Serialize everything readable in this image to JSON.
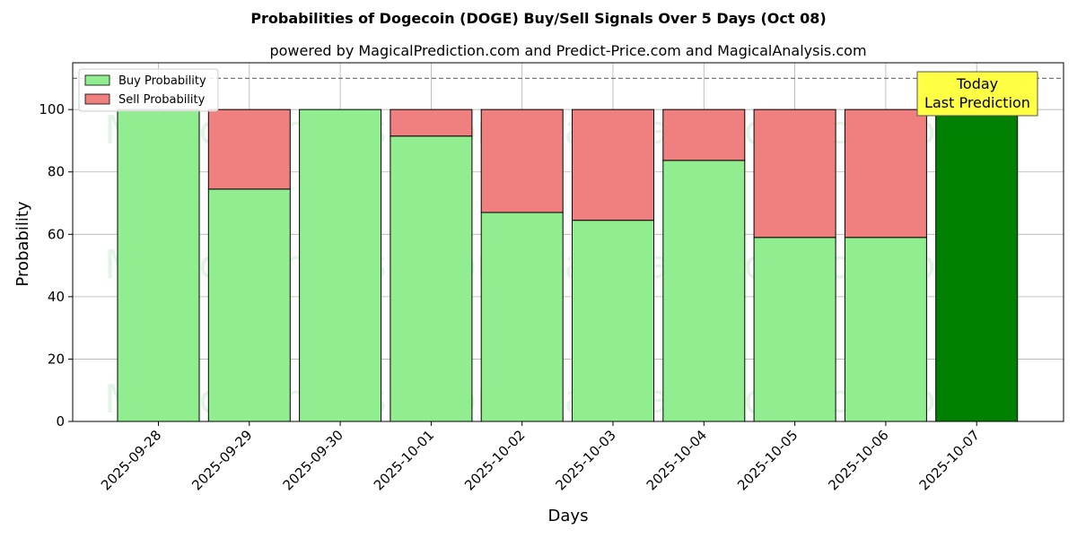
{
  "chart_data": {
    "type": "bar",
    "stacked": true,
    "title": "Probabilities of Dogecoin (DOGE) Buy/Sell Signals Over 5 Days (Oct 08)",
    "subtitle": "powered by MagicalPrediction.com and Predict-Price.com and MagicalAnalysis.com",
    "xlabel": "Days",
    "ylabel": "Probability",
    "ylim": [
      0,
      115
    ],
    "yticks": [
      0,
      20,
      40,
      60,
      80,
      100
    ],
    "grid": true,
    "legend_position": "top-left",
    "reference_line": 110,
    "categories": [
      "2025-09-28",
      "2025-09-29",
      "2025-09-30",
      "2025-10-01",
      "2025-10-02",
      "2025-10-03",
      "2025-10-04",
      "2025-10-05",
      "2025-10-06",
      "2025-10-07"
    ],
    "series": [
      {
        "name": "Buy Probability",
        "color": "#90ee90",
        "values": [
          100,
          74.5,
          100,
          91.5,
          67,
          64.5,
          83.7,
          59,
          59,
          100
        ]
      },
      {
        "name": "Sell Probability",
        "color": "#f08080",
        "values": [
          0,
          25.5,
          0,
          8.5,
          33,
          35.5,
          16.3,
          41,
          41,
          0
        ]
      }
    ],
    "highlight": {
      "category": "2025-10-07",
      "color": "#008000"
    },
    "annotation": {
      "line1": "Today",
      "line2": "Last Prediction",
      "color": "#ffff44"
    },
    "watermarks": [
      "MagicalAnalysis.com",
      "MagicalPrediction.com"
    ]
  }
}
